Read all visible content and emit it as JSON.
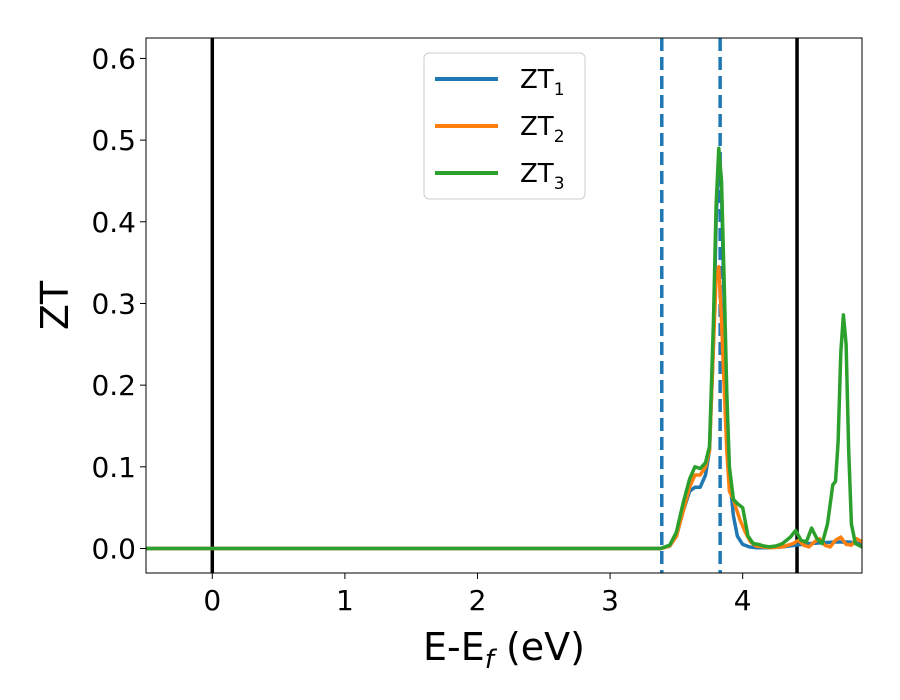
{
  "chart_data": {
    "type": "line",
    "xlabel": {
      "main": "E-E",
      "sub": "f",
      "unit": " (eV)"
    },
    "ylabel": "ZT",
    "xlim": [
      -0.5,
      4.9
    ],
    "ylim": [
      -0.03,
      0.625
    ],
    "xticks": [
      0,
      1,
      2,
      3,
      4
    ],
    "yticks": [
      0.0,
      0.1,
      0.2,
      0.3,
      0.4,
      0.5,
      0.6
    ],
    "xtick_labels": [
      "0",
      "1",
      "2",
      "3",
      "4"
    ],
    "ytick_labels": [
      "0.0",
      "0.1",
      "0.2",
      "0.3",
      "0.4",
      "0.5",
      "0.6"
    ],
    "grid": false,
    "legend_position": "top-center",
    "vlines": [
      {
        "x": 0.0,
        "style": "solid",
        "color": "#000000"
      },
      {
        "x": 4.41,
        "style": "solid",
        "color": "#000000"
      },
      {
        "x": 3.39,
        "style": "dashed",
        "color": "#1f77b4"
      },
      {
        "x": 3.83,
        "style": "dashed",
        "color": "#1f77b4"
      }
    ],
    "series": [
      {
        "name": "ZT",
        "sub": "1",
        "color": "#1f77b4",
        "x": [
          -0.5,
          3.38,
          3.45,
          3.5,
          3.55,
          3.6,
          3.64,
          3.68,
          3.72,
          3.75,
          3.78,
          3.8,
          3.82,
          3.84,
          3.86,
          3.88,
          3.9,
          3.93,
          3.96,
          4.0,
          4.05,
          4.1,
          4.2,
          4.3,
          4.4,
          4.5,
          4.6,
          4.7,
          4.8,
          4.85,
          4.9
        ],
        "y": [
          0.0,
          0.0,
          0.003,
          0.015,
          0.045,
          0.07,
          0.075,
          0.075,
          0.09,
          0.12,
          0.25,
          0.4,
          0.48,
          0.44,
          0.3,
          0.17,
          0.09,
          0.04,
          0.015,
          0.005,
          0.002,
          0.001,
          0.001,
          0.002,
          0.004,
          0.006,
          0.007,
          0.008,
          0.008,
          0.007,
          0.005
        ]
      },
      {
        "name": "ZT",
        "sub": "2",
        "color": "#ff7f0e",
        "x": [
          -0.5,
          3.38,
          3.45,
          3.5,
          3.55,
          3.6,
          3.64,
          3.68,
          3.72,
          3.75,
          3.78,
          3.8,
          3.82,
          3.84,
          3.86,
          3.88,
          3.9,
          3.93,
          3.95,
          3.98,
          4.02,
          4.06,
          4.1,
          4.2,
          4.3,
          4.38,
          4.42,
          4.46,
          4.5,
          4.54,
          4.58,
          4.62,
          4.66,
          4.7,
          4.74,
          4.78,
          4.82,
          4.86,
          4.9
        ],
        "y": [
          0.0,
          0.0,
          0.003,
          0.015,
          0.045,
          0.075,
          0.09,
          0.09,
          0.1,
          0.12,
          0.25,
          0.33,
          0.345,
          0.28,
          0.2,
          0.12,
          0.07,
          0.06,
          0.05,
          0.035,
          0.02,
          0.008,
          0.003,
          0.001,
          0.002,
          0.006,
          0.01,
          0.004,
          0.002,
          0.008,
          0.012,
          0.004,
          0.002,
          0.01,
          0.014,
          0.005,
          0.004,
          0.012,
          0.008
        ]
      },
      {
        "name": "ZT",
        "sub": "3",
        "color": "#2ca02c",
        "x": [
          -0.5,
          3.38,
          3.45,
          3.5,
          3.55,
          3.6,
          3.64,
          3.68,
          3.72,
          3.75,
          3.78,
          3.8,
          3.82,
          3.84,
          3.86,
          3.88,
          3.9,
          3.93,
          3.96,
          4.0,
          4.04,
          4.08,
          4.12,
          4.16,
          4.2,
          4.25,
          4.3,
          4.36,
          4.4,
          4.44,
          4.48,
          4.52,
          4.56,
          4.6,
          4.64,
          4.68,
          4.7,
          4.72,
          4.74,
          4.76,
          4.78,
          4.8,
          4.82,
          4.85,
          4.9
        ],
        "y": [
          0.0,
          0.0,
          0.004,
          0.02,
          0.055,
          0.085,
          0.1,
          0.098,
          0.105,
          0.125,
          0.28,
          0.42,
          0.49,
          0.45,
          0.33,
          0.19,
          0.1,
          0.06,
          0.055,
          0.05,
          0.015,
          0.006,
          0.005,
          0.003,
          0.002,
          0.003,
          0.006,
          0.014,
          0.022,
          0.01,
          0.008,
          0.025,
          0.012,
          0.006,
          0.03,
          0.078,
          0.082,
          0.13,
          0.24,
          0.286,
          0.25,
          0.12,
          0.03,
          0.006,
          0.002
        ]
      }
    ]
  }
}
